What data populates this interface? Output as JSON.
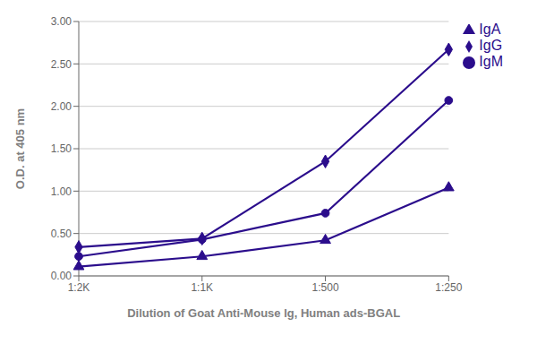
{
  "chart_data": {
    "type": "line",
    "xlabel": "Dilution of Goat Anti-Mouse Ig, Human ads-BGAL",
    "ylabel": "O.D. at 405 nm",
    "categories": [
      "1:2K",
      "1:1K",
      "1:500",
      "1:250"
    ],
    "series": [
      {
        "name": "IgG",
        "color": "#2b0d8c",
        "marker": "diamond",
        "values": [
          0.34,
          0.44,
          1.35,
          2.67
        ]
      },
      {
        "name": "IgM",
        "color": "#2b0d8c",
        "marker": "circle",
        "values": [
          0.23,
          0.43,
          0.74,
          2.07
        ]
      },
      {
        "name": "IgA",
        "color": "#2b0d8c",
        "marker": "triangle",
        "values": [
          0.11,
          0.23,
          0.42,
          1.04
        ]
      }
    ],
    "ylim": [
      0.0,
      3.0
    ],
    "yticks": [
      {
        "value": 0.0,
        "label": "0.00"
      },
      {
        "value": 0.5,
        "label": "0.50"
      },
      {
        "value": 1.0,
        "label": "1.00"
      },
      {
        "value": 1.5,
        "label": "1.50"
      },
      {
        "value": 2.0,
        "label": "2.00"
      },
      {
        "value": 2.5,
        "label": "2.50"
      },
      {
        "value": 3.0,
        "label": "3.00"
      }
    ],
    "grid": true,
    "legend": "right"
  }
}
